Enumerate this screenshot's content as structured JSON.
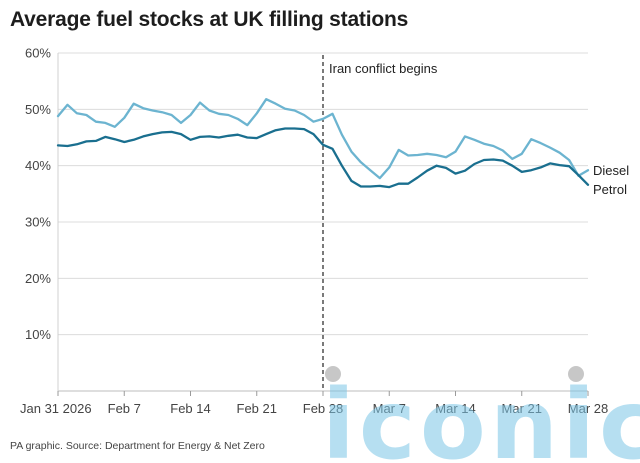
{
  "chart_data": {
    "type": "line",
    "title": "Average fuel stocks at UK filling stations",
    "source": "PA graphic. Source: Department for Energy & Net Zero",
    "xlabel": "",
    "ylabel": "",
    "x_ticks": [
      "Jan 31 2026",
      "Feb 7",
      "Feb 14",
      "Feb 21",
      "Feb 28",
      "Mar 7",
      "Mar 14",
      "Mar 21",
      "Mar 28"
    ],
    "y_ticks": [
      "10%",
      "20%",
      "30%",
      "40%",
      "50%",
      "60%"
    ],
    "ylim": [
      0,
      60
    ],
    "xlim": [
      0,
      56
    ],
    "annotation": {
      "x": 28,
      "label": "Iran conflict begins"
    },
    "series": [
      {
        "name": "Diesel",
        "color": "#6cb4d0",
        "x": [
          0,
          1,
          2,
          3,
          4,
          5,
          6,
          7,
          8,
          9,
          10,
          11,
          12,
          13,
          14,
          15,
          16,
          17,
          18,
          19,
          20,
          21,
          22,
          23,
          24,
          25,
          26,
          27,
          28,
          29,
          30,
          31,
          32,
          33,
          34,
          35,
          36,
          37,
          38,
          39,
          40,
          41,
          42,
          43,
          44,
          45,
          46,
          47,
          48,
          49,
          50,
          51,
          52,
          53,
          54,
          55,
          56
        ],
        "values": [
          48.8,
          50.8,
          49.3,
          49.0,
          47.8,
          47.6,
          46.9,
          48.5,
          51.0,
          50.2,
          49.8,
          49.5,
          49.0,
          47.6,
          49.0,
          51.2,
          49.8,
          49.2,
          49.0,
          48.3,
          47.2,
          49.3,
          51.8,
          51.0,
          50.1,
          49.8,
          49.0,
          47.8,
          48.3,
          49.2,
          45.5,
          42.5,
          40.6,
          39.2,
          37.8,
          39.7,
          42.8,
          41.8,
          41.9,
          42.1,
          41.9,
          41.5,
          42.5,
          45.2,
          44.6,
          43.9,
          43.5,
          42.7,
          41.2,
          42.1,
          44.7,
          44.0,
          43.2,
          42.3,
          41.0,
          38.2,
          39.2
        ]
      },
      {
        "name": "Petrol",
        "color": "#1a6f8f",
        "x": [
          0,
          1,
          2,
          3,
          4,
          5,
          6,
          7,
          8,
          9,
          10,
          11,
          12,
          13,
          14,
          15,
          16,
          17,
          18,
          19,
          20,
          21,
          22,
          23,
          24,
          25,
          26,
          27,
          28,
          29,
          30,
          31,
          32,
          33,
          34,
          35,
          36,
          37,
          38,
          39,
          40,
          41,
          42,
          43,
          44,
          45,
          46,
          47,
          48,
          49,
          50,
          51,
          52,
          53,
          54,
          55,
          56
        ],
        "values": [
          43.6,
          43.5,
          43.8,
          44.3,
          44.4,
          45.1,
          44.7,
          44.2,
          44.6,
          45.2,
          45.6,
          45.9,
          46.0,
          45.6,
          44.6,
          45.1,
          45.2,
          45.0,
          45.3,
          45.5,
          45.0,
          44.9,
          45.6,
          46.3,
          46.6,
          46.6,
          46.5,
          45.6,
          43.7,
          43.0,
          40.0,
          37.3,
          36.3,
          36.3,
          36.4,
          36.2,
          36.8,
          36.8,
          37.9,
          39.1,
          40.0,
          39.6,
          38.6,
          39.1,
          40.3,
          41.0,
          41.1,
          40.9,
          40.0,
          38.9,
          39.2,
          39.7,
          40.4,
          40.1,
          39.9,
          38.3,
          36.6
        ]
      }
    ]
  },
  "watermark": {
    "text": "iconic"
  }
}
